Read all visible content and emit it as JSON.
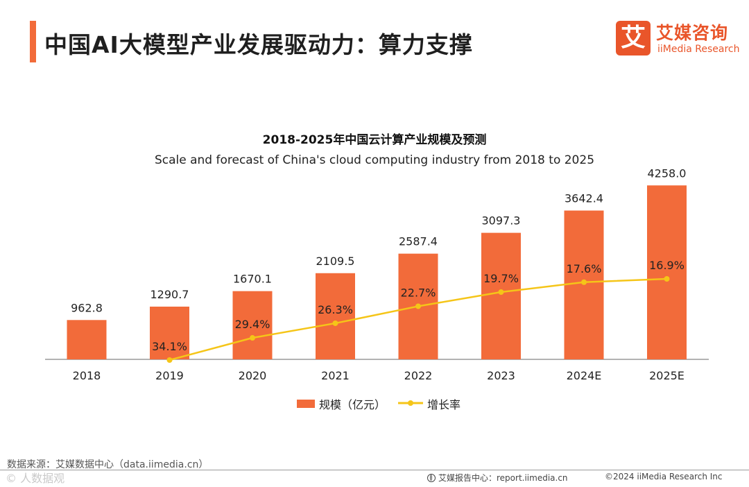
{
  "page": {
    "title": "中国AI大模型产业发展驱动力：算力支撑"
  },
  "brand": {
    "mark": "艾",
    "name_cn": "艾媒咨询",
    "name_en": "iiMedia Research"
  },
  "chart_data": {
    "type": "bar",
    "title": "2018-2025年中国云计算产业规模及预测",
    "subtitle": "Scale and forecast of China's cloud computing industry from 2018 to 2025",
    "categories": [
      "2018",
      "2019",
      "2020",
      "2021",
      "2022",
      "2023",
      "2024E",
      "2025E"
    ],
    "series": [
      {
        "name": "规模（亿元）",
        "type": "bar",
        "color": "#f26b3a",
        "values": [
          962.8,
          1290.7,
          1670.1,
          2109.5,
          2587.4,
          3097.3,
          3642.4,
          4258.0
        ],
        "labels": [
          "962.8",
          "1290.7",
          "1670.1",
          "2109.5",
          "2587.4",
          "3097.3",
          "3642.4",
          "4258.0"
        ]
      },
      {
        "name": "增长率",
        "type": "line",
        "color": "#f5c518",
        "values": [
          null,
          34.1,
          29.4,
          26.3,
          22.7,
          19.7,
          17.6,
          16.9
        ],
        "labels": [
          "",
          "34.1%",
          "29.4%",
          "26.3%",
          "22.7%",
          "19.7%",
          "17.6%",
          "16.9%"
        ]
      }
    ],
    "ylim_bar": [
      0,
      4500
    ],
    "ylim_line": [
      0,
      36
    ],
    "grid": false,
    "legend": "bottom"
  },
  "legend": {
    "bar_label": "规模（亿元）",
    "line_label": "增长率"
  },
  "footer": {
    "source": "数据来源：艾媒数据中心（data.iimedia.cn）",
    "watermark": "© 人数据观",
    "center": "艾媒报告中心：report.iimedia.cn",
    "right": "©2024  iiMedia Research  Inc"
  }
}
